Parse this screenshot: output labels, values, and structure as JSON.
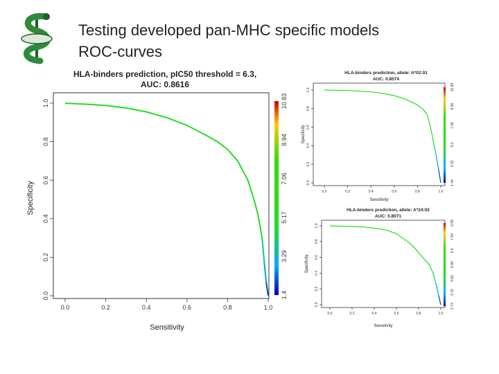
{
  "slide": {
    "title_line1": "Testing developed pan-MHC specific models",
    "title_line2": "ROC-curves"
  },
  "colors": {
    "green": "#22dd22",
    "axis": "#333333",
    "logo_green": "#2e8b3a",
    "logo_dark": "#1f5e29"
  },
  "chart_data": [
    {
      "type": "line",
      "title_line1": "HLA-binders prediction, pIC50 threshold = 6.3,",
      "title_line2": "AUC: 0.8616",
      "xlabel": "Sensitivity",
      "ylabel": "Specificity",
      "xlim": [
        0,
        1
      ],
      "ylim": [
        0,
        1
      ],
      "xticks": [
        "0.0",
        "0.2",
        "0.4",
        "0.6",
        "0.8",
        "1.0"
      ],
      "yticks": [
        "0.0",
        "0.2",
        "0.4",
        "0.6",
        "0.8",
        "1.0"
      ],
      "colorbar_ticks": [
        "1.4",
        "3.29",
        "5.17",
        "7.06",
        "8.94",
        "10.83"
      ],
      "x": [
        0,
        0.1,
        0.2,
        0.3,
        0.4,
        0.5,
        0.6,
        0.7,
        0.75,
        0.8,
        0.85,
        0.9,
        0.93,
        0.95,
        0.97,
        0.98,
        0.99,
        1.0
      ],
      "y": [
        1.0,
        0.995,
        0.988,
        0.975,
        0.955,
        0.925,
        0.885,
        0.83,
        0.8,
        0.76,
        0.7,
        0.6,
        0.5,
        0.42,
        0.3,
        0.18,
        0.07,
        0.0
      ]
    },
    {
      "type": "line",
      "title_line1": "HLA-binders prediction, allele: A*02:01",
      "title_line2": "AUC: 0.8574",
      "xlabel": "Sensitivity",
      "ylabel": "Specificity",
      "xlim": [
        0,
        1
      ],
      "ylim": [
        0,
        1
      ],
      "xticks": [
        "0.0",
        "0.2",
        "0.4",
        "0.6",
        "0.8",
        "1.0"
      ],
      "yticks": [
        "0.0",
        "0.2",
        "0.4",
        "0.6",
        "0.8",
        "1.0"
      ],
      "colorbar_ticks": [
        "1.44",
        "3.32",
        "5.2",
        "7.08",
        "8.96",
        "10.84"
      ],
      "x": [
        0,
        0.2,
        0.4,
        0.5,
        0.6,
        0.7,
        0.75,
        0.8,
        0.85,
        0.88,
        0.9,
        0.92,
        0.94,
        0.96,
        0.98,
        1.0
      ],
      "y": [
        1.0,
        0.995,
        0.98,
        0.965,
        0.94,
        0.9,
        0.87,
        0.84,
        0.79,
        0.74,
        0.66,
        0.55,
        0.42,
        0.3,
        0.15,
        0.0
      ]
    },
    {
      "type": "line",
      "title_line1": "HLA-binders prediction, allele: A*24:02",
      "title_line2": "AUC: 0.8071",
      "xlabel": "Sensitivity",
      "ylabel": "Specificity",
      "xlim": [
        0,
        1
      ],
      "ylim": [
        0,
        1
      ],
      "xticks": [
        "0.0",
        "0.2",
        "0.4",
        "0.6",
        "0.8",
        "1.0"
      ],
      "yticks": [
        "0.0",
        "0.2",
        "0.4",
        "0.6",
        "0.8",
        "1.0"
      ],
      "colorbar_ticks": [
        "2.74",
        "3.78",
        "4.82",
        "5.86",
        "6.9",
        "7.94",
        "8.98"
      ],
      "x": [
        0,
        0.1,
        0.2,
        0.3,
        0.4,
        0.5,
        0.6,
        0.7,
        0.75,
        0.8,
        0.85,
        0.9,
        0.93,
        0.96,
        0.98,
        1.0
      ],
      "y": [
        1.0,
        0.995,
        0.99,
        0.985,
        0.97,
        0.95,
        0.9,
        0.8,
        0.74,
        0.66,
        0.58,
        0.5,
        0.4,
        0.25,
        0.12,
        0.0
      ]
    }
  ]
}
